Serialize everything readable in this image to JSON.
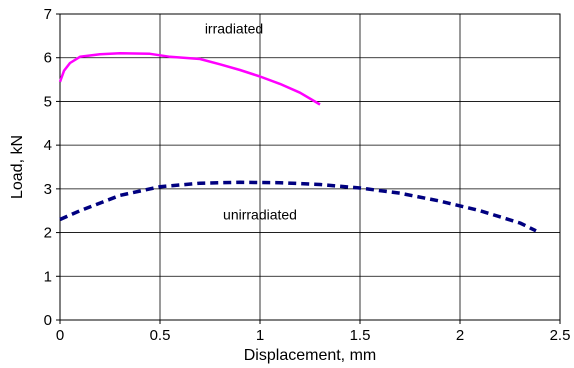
{
  "chart_data": {
    "type": "line",
    "title": "",
    "xlabel": "Displacement, mm",
    "ylabel": "Load, kN",
    "xlim": [
      0,
      2.5
    ],
    "ylim": [
      0,
      7
    ],
    "xticks": [
      "0",
      "0.5",
      "1",
      "1.5",
      "2",
      "2.5"
    ],
    "yticks": [
      "0",
      "1",
      "2",
      "3",
      "4",
      "5",
      "6",
      "7"
    ],
    "grid": true,
    "legend": "none",
    "series": [
      {
        "name": "irradiated",
        "color": "#ff00ff",
        "style": "solid",
        "x": [
          0,
          0.02,
          0.05,
          0.1,
          0.2,
          0.3,
          0.45,
          0.55,
          0.7,
          0.8,
          0.9,
          1.0,
          1.1,
          1.2,
          1.3
        ],
        "y": [
          5.45,
          5.7,
          5.88,
          6.02,
          6.08,
          6.1,
          6.09,
          6.02,
          5.97,
          5.85,
          5.72,
          5.57,
          5.4,
          5.2,
          4.93
        ]
      },
      {
        "name": "unirradiated",
        "color": "#000080",
        "style": "dashed",
        "x": [
          0,
          0.1,
          0.3,
          0.5,
          0.7,
          0.9,
          1.1,
          1.3,
          1.5,
          1.7,
          1.9,
          2.1,
          2.3,
          2.38
        ],
        "y": [
          2.3,
          2.5,
          2.85,
          3.05,
          3.13,
          3.15,
          3.14,
          3.1,
          3.02,
          2.9,
          2.72,
          2.5,
          2.22,
          2.04
        ]
      }
    ],
    "annotations": [
      {
        "text": "irradiated",
        "x": 0.87,
        "y": 6.55
      },
      {
        "text": "unirradiated",
        "x": 1.0,
        "y": 2.3
      }
    ]
  }
}
